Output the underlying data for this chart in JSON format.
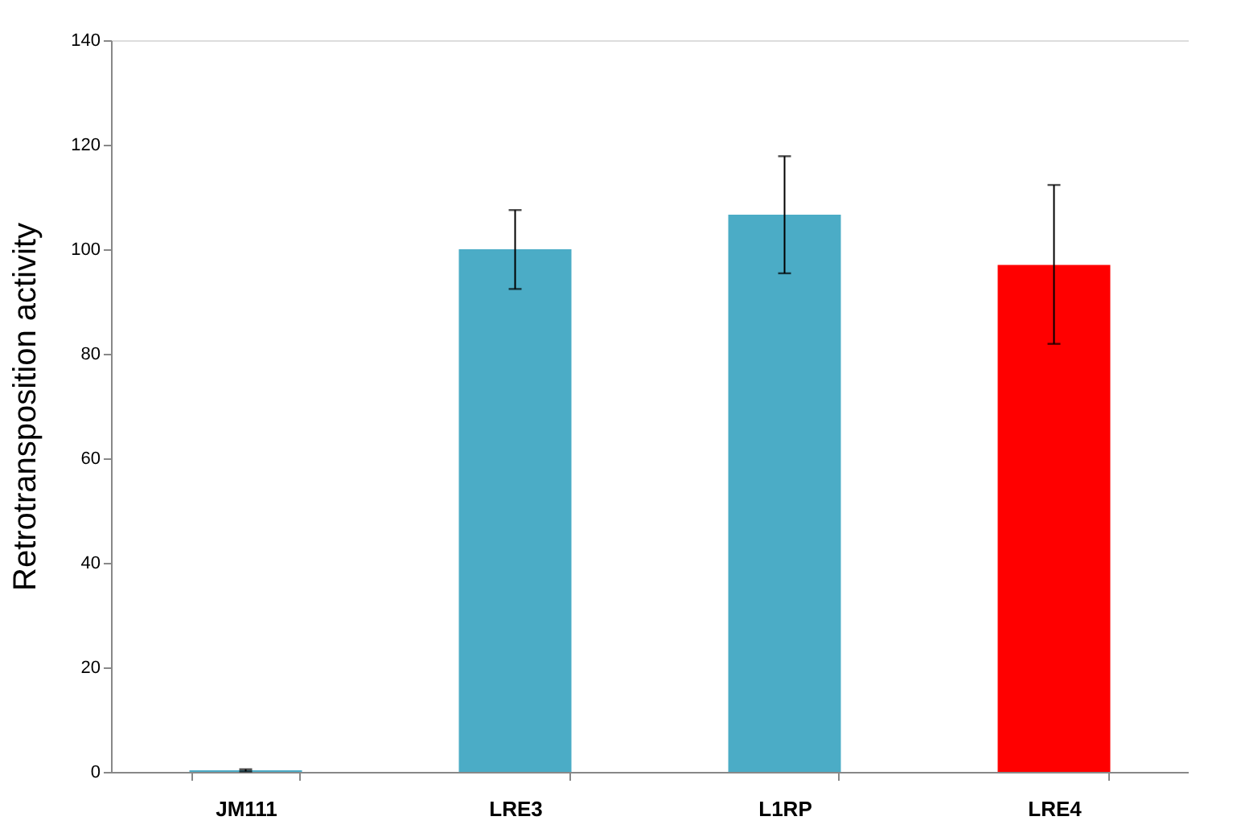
{
  "chart_data": {
    "type": "bar",
    "ylabel": "Retrotransposition activity",
    "categories": [
      "JM111",
      "LRE3",
      "L1RP",
      "LRE4"
    ],
    "values": [
      0.3,
      100,
      106.6,
      97.0
    ],
    "colors": [
      "#4bacc6",
      "#4bacc6",
      "#4bacc6",
      "#ff0000"
    ],
    "errors": [
      0.2,
      [
        92.4,
        107.5
      ],
      [
        95.4,
        117.8
      ],
      [
        81.9,
        112.3
      ]
    ],
    "ylim": [
      0,
      140
    ],
    "yticks": [
      0,
      20,
      40,
      60,
      80,
      100,
      120,
      140
    ],
    "grid": false
  }
}
